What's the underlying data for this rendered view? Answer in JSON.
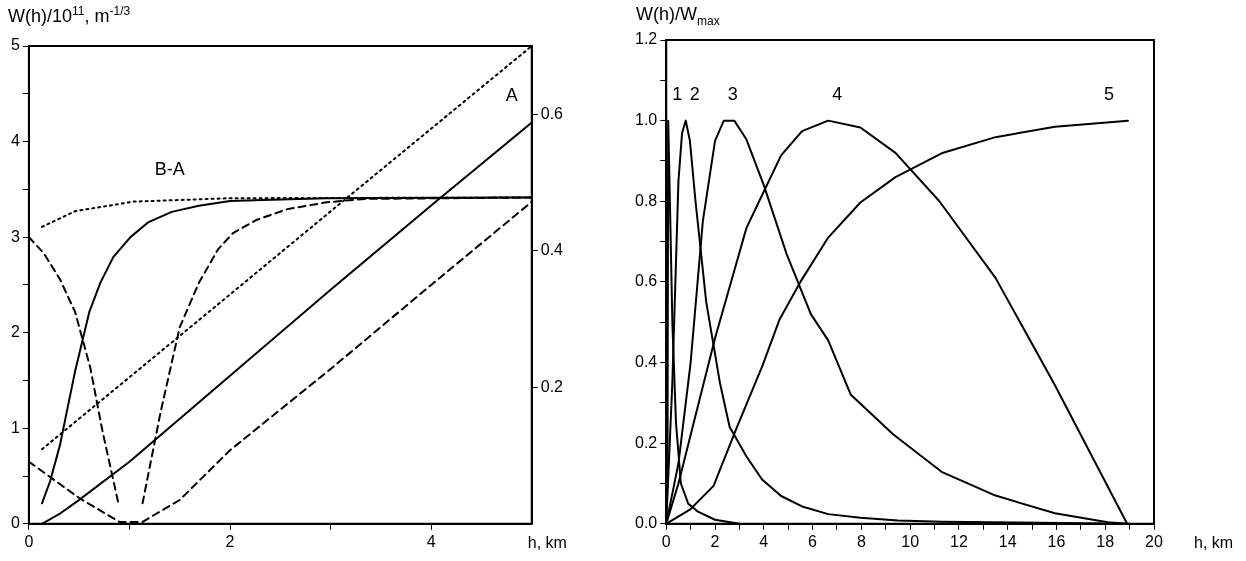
{
  "chart_data": [
    {
      "type": "line",
      "xlabel": "h, km",
      "ylabel": "W(h)/10$^{11}$, m$^{-1/3}$",
      "xlim": [
        0,
        5
      ],
      "xticks": [
        0,
        {
          "value": 1,
          "label": null
        },
        2,
        {
          "value": 3,
          "label": null
        },
        4
      ],
      "ylim": [
        0,
        5
      ],
      "yticks": [
        0,
        {
          "value": 0.5,
          "label": null
        },
        1,
        {
          "value": 1.5,
          "label": null
        },
        2,
        {
          "value": 2.5,
          "label": null
        },
        3,
        {
          "value": 3.5,
          "label": null
        },
        4,
        {
          "value": 4.5,
          "label": null
        },
        5
      ],
      "y2lim": [
        0,
        0.7
      ],
      "y2ticks": [
        0.2,
        0.4,
        0.6
      ],
      "grid": false,
      "legend": false,
      "marker": "none",
      "series": [
        {
          "name": "A",
          "color": "#000000",
          "line_style": "solid",
          "x": [
            0.13,
            0.3,
            0.5,
            1,
            2,
            3,
            4,
            5
          ],
          "values": [
            0,
            0.1,
            0.25,
            0.65,
            1.55,
            2.45,
            3.33,
            4.2
          ]
        },
        {
          "color": "#000000",
          "line_style": "dotted",
          "x": [
            0.13,
            2,
            3,
            5
          ],
          "values": [
            0.78,
            2.4,
            3.27,
            5
          ]
        },
        {
          "color": "#000000",
          "line_style": "dashed",
          "x": [
            0,
            0.5,
            0.9,
            1.13,
            1.5,
            2,
            3,
            4,
            5
          ],
          "values": [
            0.65,
            0.27,
            0.02,
            0.02,
            0.25,
            0.77,
            1.62,
            2.5,
            3.37
          ]
        },
        {
          "color": "#000000",
          "line_style": "dotted",
          "axis": "y2",
          "x": [
            0.13,
            0.46,
            1.04,
            2,
            5
          ],
          "values": [
            0.435,
            0.458,
            0.472,
            0.477,
            0.478
          ]
        },
        {
          "color": "#000000",
          "line_style": "solid",
          "axis": "y2",
          "x": [
            0.13,
            0.21,
            0.31,
            0.46,
            0.6,
            0.71,
            0.84,
            1.01,
            1.19,
            1.42,
            1.69,
            2,
            2.96,
            5
          ],
          "values": [
            0.03,
            0.062,
            0.116,
            0.224,
            0.31,
            0.353,
            0.391,
            0.42,
            0.442,
            0.457,
            0.466,
            0.473,
            0.477,
            0.478
          ]
        },
        {
          "color": "#000000",
          "line_style": "dashed",
          "axis": "y2",
          "x": [
            0,
            0.15,
            0.31,
            0.46,
            0.61,
            0.73,
            0.89
          ],
          "values": [
            0.42,
            0.396,
            0.358,
            0.31,
            0.229,
            0.137,
            0.03
          ]
        },
        {
          "color": "#000000",
          "line_style": "dashed",
          "axis": "y2",
          "x": [
            1.13,
            1.31,
            1.5,
            1.69,
            1.88,
            2.03,
            2.26,
            2.57,
            2.96,
            3.34,
            5
          ],
          "values": [
            0.03,
            0.164,
            0.288,
            0.353,
            0.402,
            0.426,
            0.445,
            0.461,
            0.471,
            0.476,
            0.478
          ]
        }
      ],
      "annotations": [
        "B-A"
      ]
    },
    {
      "type": "line",
      "xlabel": "h, km",
      "ylabel": "W(h)/W$_{max}$",
      "xlim": [
        0,
        20
      ],
      "xticks": [
        0,
        {
          "value": 1,
          "label": null
        },
        2,
        {
          "value": 3,
          "label": null
        },
        4,
        {
          "value": 5,
          "label": null
        },
        6,
        {
          "value": 7,
          "label": null
        },
        8,
        {
          "value": 9,
          "label": null
        },
        10,
        {
          "value": 11,
          "label": null
        },
        12,
        {
          "value": 13,
          "label": null
        },
        14,
        {
          "value": 15,
          "label": null
        },
        16,
        {
          "value": 17,
          "label": null
        },
        18,
        {
          "value": 19,
          "label": null
        },
        20
      ],
      "ylim": [
        0,
        1.2
      ],
      "yticks": [
        {
          "value": 0,
          "label": "0.0"
        },
        {
          "value": 0.1,
          "label": null
        },
        0.2,
        {
          "value": 0.3,
          "label": null
        },
        0.4,
        {
          "value": 0.5,
          "label": null
        },
        0.6,
        {
          "value": 0.7,
          "label": null
        },
        0.8,
        {
          "value": 0.9,
          "label": null
        },
        {
          "value": 1,
          "label": "1.0"
        },
        {
          "value": 1.1,
          "label": null
        },
        1.2
      ],
      "grid": false,
      "legend": false,
      "marker": "none",
      "series": [
        {
          "name": "1",
          "color": "#000000",
          "line_style": "solid",
          "x": [
            0.05,
            0.08,
            0.15,
            0.25,
            0.4,
            0.6,
            0.9,
            1.3,
            2,
            3
          ],
          "values": [
            0.09,
            1.0,
            0.8,
            0.5,
            0.25,
            0.1,
            0.05,
            0.03,
            0.01,
            0
          ]
        },
        {
          "name": "2",
          "color": "#000000",
          "line_style": "solid",
          "x": [
            0,
            0.25,
            0.5,
            0.65,
            0.8,
            0.97,
            1.2,
            1.64,
            2.2,
            2.6,
            3.29,
            3.93,
            4.71,
            5.57,
            6.64,
            7.96,
            9.5,
            11.3,
            19
          ],
          "values": [
            0,
            0.35,
            0.85,
            0.97,
            1.0,
            0.95,
            0.8,
            0.55,
            0.35,
            0.24,
            0.167,
            0.11,
            0.069,
            0.043,
            0.024,
            0.015,
            0.008,
            0.005,
            0
          ]
        },
        {
          "name": "3",
          "color": "#000000",
          "line_style": "solid",
          "x": [
            0,
            0.5,
            1,
            1.5,
            2,
            2.36,
            2.79,
            3.29,
            4,
            4.93,
            5.93,
            6.64,
            7.57,
            9.3,
            11.29,
            13.5,
            15.94,
            18.1,
            18.9
          ],
          "values": [
            0,
            0.15,
            0.4,
            0.75,
            0.95,
            1.0,
            1.0,
            0.953,
            0.84,
            0.67,
            0.52,
            0.455,
            0.32,
            0.222,
            0.129,
            0.07,
            0.026,
            0.004,
            0
          ]
        },
        {
          "name": "4",
          "color": "#000000",
          "line_style": "solid",
          "x": [
            0,
            0.5,
            1,
            2,
            3.29,
            4.71,
            5.57,
            6.64,
            7.96,
            9.4,
            11.2,
            13.5,
            15.9,
            18.9
          ],
          "values": [
            0,
            0.1,
            0.22,
            0.46,
            0.734,
            0.914,
            0.974,
            1.0,
            0.983,
            0.92,
            0.8,
            0.61,
            0.348,
            0
          ]
        },
        {
          "name": "5",
          "color": "#000000",
          "line_style": "solid",
          "x": [
            0,
            0.97,
            1.94,
            2.9,
            3.93,
            4.64,
            5.5,
            6.64,
            7.96,
            9.4,
            11.29,
            13.5,
            15.94,
            18.93
          ],
          "values": [
            0,
            0.035,
            0.094,
            0.24,
            0.39,
            0.506,
            0.6,
            0.71,
            0.797,
            0.86,
            0.919,
            0.959,
            0.985,
            1.0
          ]
        }
      ]
    }
  ]
}
